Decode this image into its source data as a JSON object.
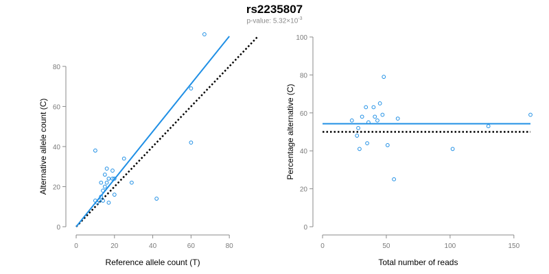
{
  "chart_title": "rs2235807",
  "chart_subtitle": {
    "prefix": "p-value: 5.32×10",
    "exponent": "-3"
  },
  "colors": {
    "points": "#1f8fe5",
    "fit_line": "#1f8fe5",
    "reference_line": "#000000",
    "axis": "#8a8a8a",
    "tick_label": "#7a7a7a",
    "axis_title": "#000000"
  },
  "chart_data": [
    {
      "type": "scatter",
      "xlabel": "Reference allele count (T)",
      "ylabel": "Alternative allele count (C)",
      "xlim": [
        0,
        95
      ],
      "ylim": [
        0,
        95
      ],
      "x_ticks": [
        0,
        20,
        40,
        60,
        80
      ],
      "y_ticks": [
        0,
        20,
        40,
        60,
        80
      ],
      "grid": false,
      "points": {
        "x": [
          67,
          60,
          60,
          42,
          25,
          29,
          20,
          20,
          16,
          16,
          19,
          17,
          15,
          13,
          14,
          10,
          13,
          10,
          12,
          14,
          15,
          11,
          17,
          19
        ],
        "y": [
          96,
          69,
          42,
          14,
          34,
          22,
          16,
          24,
          29,
          22,
          28,
          24,
          26,
          22,
          18,
          38,
          15,
          13,
          13,
          13,
          20,
          12,
          12,
          24
        ]
      },
      "fit_line": {
        "x": [
          0,
          80
        ],
        "y": [
          0,
          95
        ]
      },
      "reference_line": {
        "x": [
          0,
          95
        ],
        "y": [
          0,
          95
        ],
        "style": "dotted"
      }
    },
    {
      "type": "scatter",
      "xlabel": "Total number of reads",
      "ylabel": "Percentage alternative (C)",
      "xlim": [
        0,
        163
      ],
      "ylim": [
        0,
        100
      ],
      "x_ticks": [
        0,
        50,
        100,
        150
      ],
      "y_ticks": [
        0,
        20,
        40,
        60,
        80,
        100
      ],
      "grid": false,
      "points": {
        "x": [
          23,
          27,
          28,
          29,
          31,
          34,
          35,
          36,
          40,
          41,
          43,
          45,
          47,
          48,
          51,
          56,
          59,
          102,
          130,
          163
        ],
        "y": [
          56,
          48,
          52,
          41,
          58,
          63,
          44,
          55,
          63,
          58,
          56,
          65,
          59,
          79,
          43,
          25,
          57,
          41,
          53,
          59
        ]
      },
      "fit_line": {
        "x": [
          0,
          163
        ],
        "y": [
          54.3,
          54.3
        ]
      },
      "reference_line": {
        "x": [
          0,
          163
        ],
        "y": [
          50,
          50
        ],
        "style": "dotted"
      }
    }
  ]
}
